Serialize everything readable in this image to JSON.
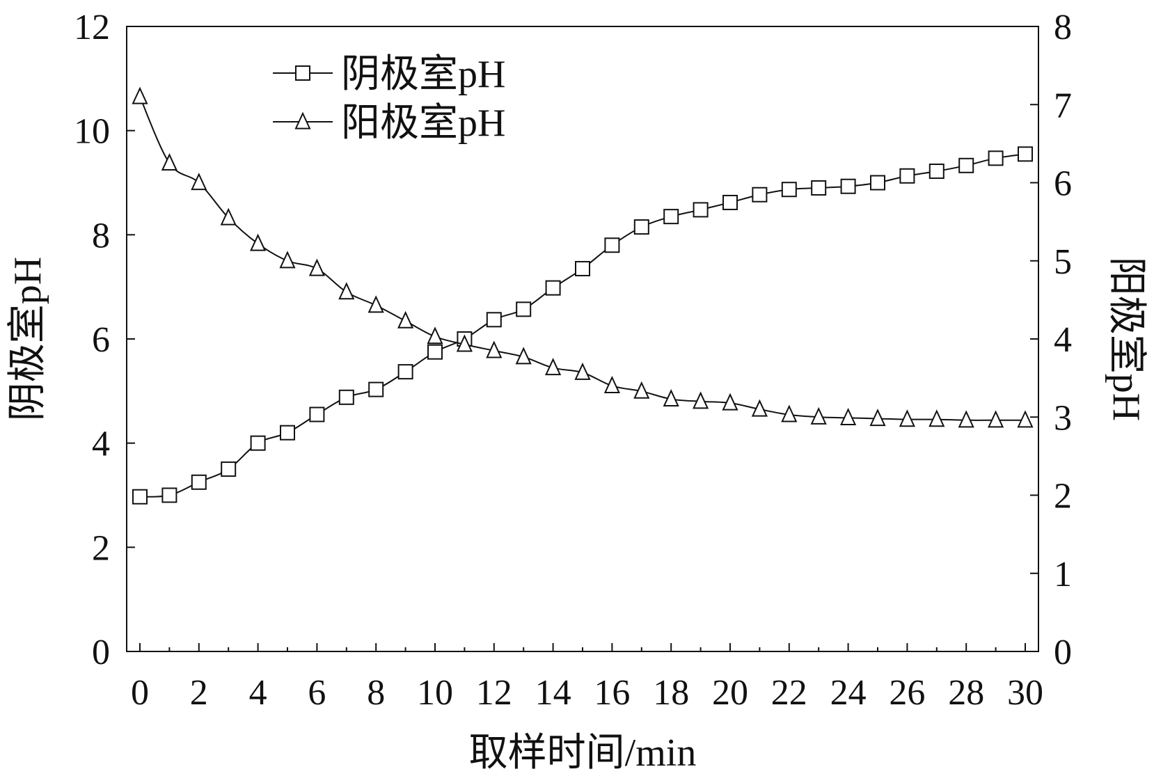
{
  "chart_data": {
    "type": "line",
    "title": "",
    "xlabel": "取样时间/min",
    "ylabel_left": "阴极室pH",
    "ylabel_right": "阳极室pH",
    "xlim": [
      0,
      30
    ],
    "x_ticks": [
      0,
      2,
      4,
      6,
      8,
      10,
      12,
      14,
      16,
      18,
      20,
      22,
      24,
      26,
      28,
      30
    ],
    "ylim_left": [
      0,
      12
    ],
    "y_ticks_left": [
      0,
      2,
      4,
      6,
      8,
      10,
      12
    ],
    "ylim_right": [
      0,
      8
    ],
    "y_ticks_right": [
      0,
      1,
      2,
      3,
      4,
      5,
      6,
      7,
      8
    ],
    "grid": false,
    "legend_position": "top-left",
    "x": [
      0,
      1,
      2,
      3,
      4,
      5,
      6,
      7,
      8,
      9,
      10,
      11,
      12,
      13,
      14,
      15,
      16,
      17,
      18,
      19,
      20,
      21,
      22,
      23,
      24,
      25,
      26,
      27,
      28,
      29,
      30
    ],
    "series": [
      {
        "name": "阴极室pH",
        "axis": "left",
        "marker": "square",
        "values": [
          2.97,
          3.0,
          3.25,
          3.5,
          4.0,
          4.2,
          4.55,
          4.88,
          5.03,
          5.37,
          5.75,
          6.0,
          6.37,
          6.57,
          6.98,
          7.35,
          7.8,
          8.15,
          8.35,
          8.48,
          8.62,
          8.77,
          8.87,
          8.9,
          8.93,
          9.0,
          9.13,
          9.22,
          9.33,
          9.47,
          9.55
        ]
      },
      {
        "name": "阳极室pH",
        "axis": "right",
        "marker": "triangle",
        "values": [
          7.1,
          6.25,
          6.0,
          5.55,
          5.22,
          5.0,
          4.9,
          4.6,
          4.43,
          4.23,
          4.03,
          3.93,
          3.85,
          3.77,
          3.63,
          3.57,
          3.4,
          3.33,
          3.23,
          3.2,
          3.18,
          3.1,
          3.03,
          3.0,
          2.99,
          2.98,
          2.97,
          2.97,
          2.96,
          2.96,
          2.96
        ]
      }
    ]
  }
}
